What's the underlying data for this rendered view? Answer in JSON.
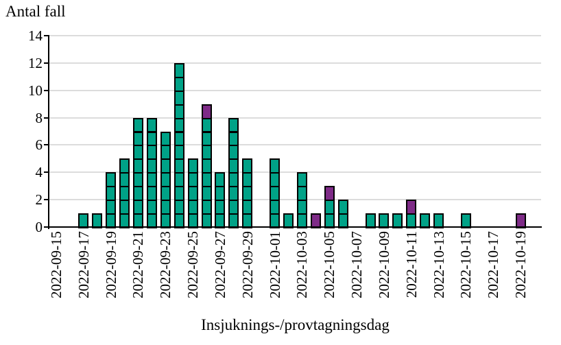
{
  "chart_data": {
    "type": "bar",
    "stacked": true,
    "title": "Antal fall",
    "xlabel": "Insjuknings-/provtagningsdag",
    "ylabel": "Antal fall",
    "ylim": [
      0,
      14
    ],
    "ytick_step": 2,
    "yticks": [
      0,
      2,
      4,
      6,
      8,
      10,
      12,
      14
    ],
    "grid": "horizontal",
    "legend": "none",
    "unit_block_style": true,
    "xlabel_every": 2,
    "categories": [
      "2022-09-15",
      "2022-09-16",
      "2022-09-17",
      "2022-09-18",
      "2022-09-19",
      "2022-09-20",
      "2022-09-21",
      "2022-09-22",
      "2022-09-23",
      "2022-09-24",
      "2022-09-25",
      "2022-09-26",
      "2022-09-27",
      "2022-09-28",
      "2022-09-29",
      "2022-09-30",
      "2022-10-01",
      "2022-10-02",
      "2022-10-03",
      "2022-10-04",
      "2022-10-05",
      "2022-10-06",
      "2022-10-07",
      "2022-10-08",
      "2022-10-09",
      "2022-10-10",
      "2022-10-11",
      "2022-10-12",
      "2022-10-13",
      "2022-10-14",
      "2022-10-15",
      "2022-10-16",
      "2022-10-17",
      "2022-10-18",
      "2022-10-19",
      "2022-10-20"
    ],
    "series": [
      {
        "id": "teal-cases",
        "color": "#00A287",
        "values": [
          0,
          0,
          1,
          1,
          4,
          5,
          8,
          8,
          7,
          12,
          5,
          8,
          4,
          8,
          5,
          0,
          5,
          1,
          4,
          0,
          2,
          2,
          0,
          1,
          1,
          1,
          1,
          1,
          1,
          0,
          1,
          0,
          0,
          0,
          0,
          0
        ]
      },
      {
        "id": "purple-cases",
        "color": "#7E2B87",
        "values": [
          0,
          0,
          0,
          0,
          0,
          0,
          0,
          0,
          0,
          0,
          0,
          1,
          0,
          0,
          0,
          0,
          0,
          0,
          0,
          1,
          1,
          0,
          0,
          0,
          0,
          0,
          1,
          0,
          0,
          0,
          0,
          0,
          0,
          0,
          1,
          0
        ]
      }
    ],
    "colors": {
      "gridline": "#DCDCDC",
      "axis": "#000000",
      "cell_border": "#000000",
      "background": "#FFFFFF"
    }
  }
}
